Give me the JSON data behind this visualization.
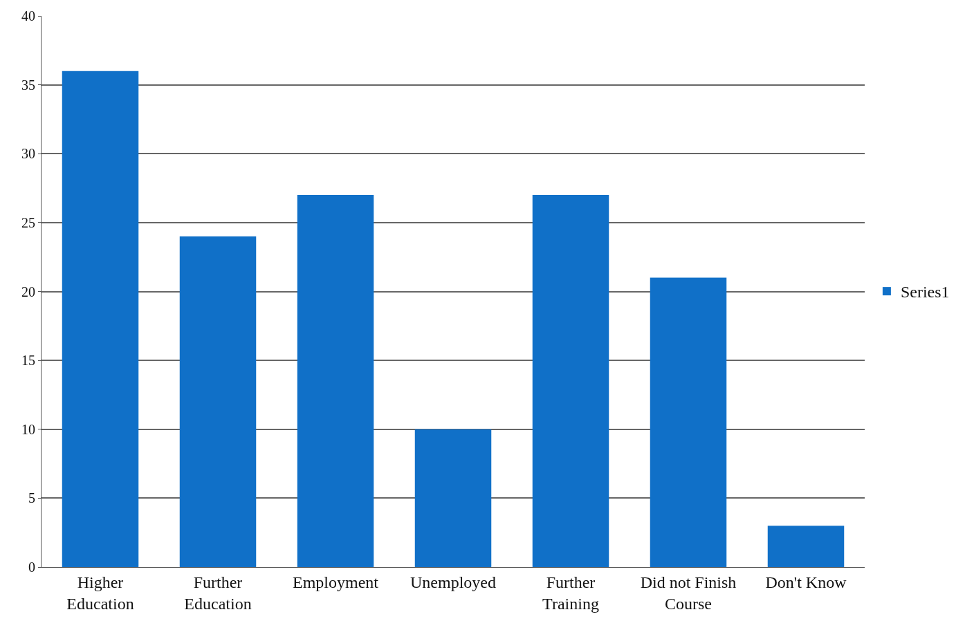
{
  "chart_data": {
    "type": "bar",
    "categories": [
      "Higher Education",
      "Further Education",
      "Employment",
      "Unemployed",
      "Further Training",
      "Did not Finish Course",
      "Don't Know"
    ],
    "series": [
      {
        "name": "Series1",
        "color": "#1070c8",
        "values": [
          36,
          24,
          27,
          10,
          27,
          21,
          3
        ]
      }
    ],
    "ylim": [
      0,
      40
    ],
    "yticks": [
      0,
      5,
      10,
      15,
      20,
      25,
      30,
      35,
      40
    ],
    "grid": "y",
    "legend": "right"
  }
}
